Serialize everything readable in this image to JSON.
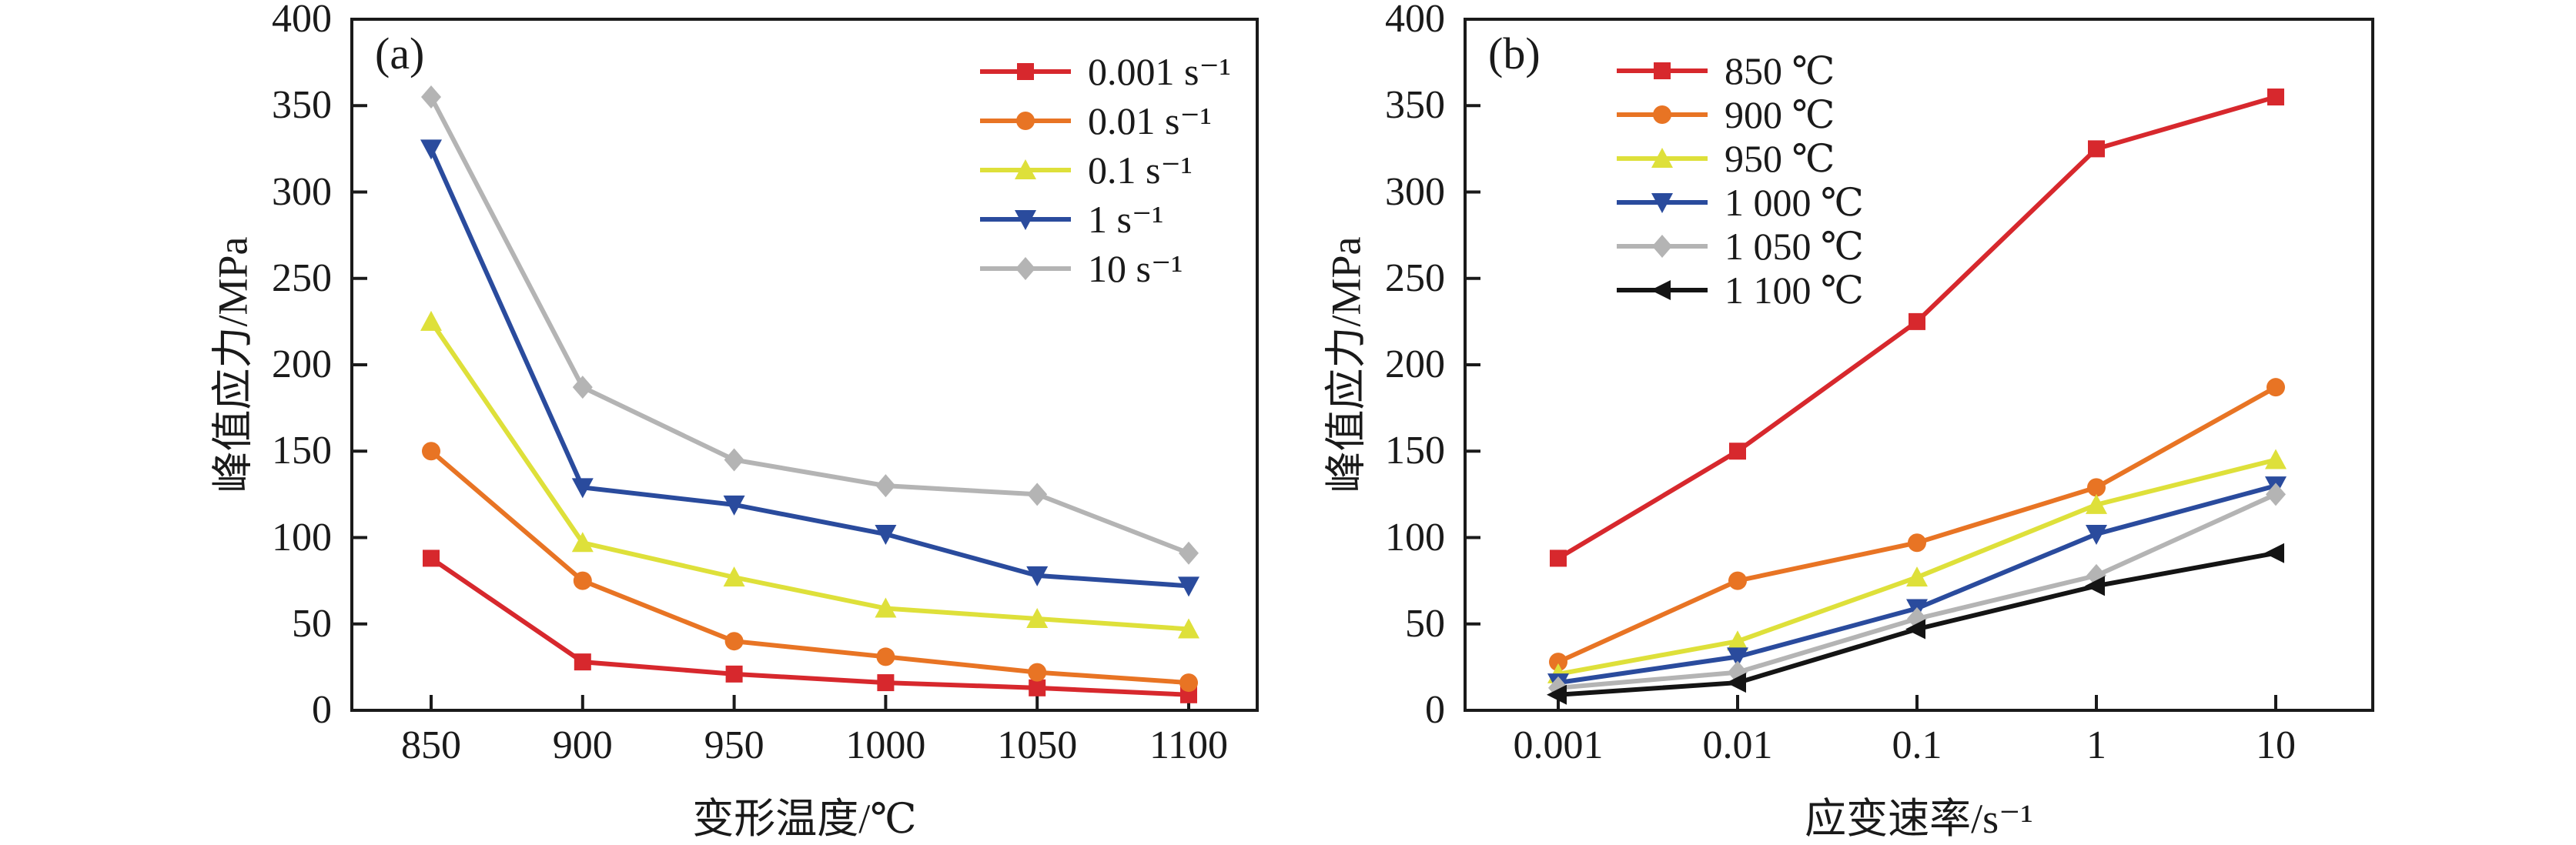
{
  "page": {
    "background": "#ffffff",
    "axis_color": "#1a1a1a"
  },
  "chart_data": [
    {
      "id": "a",
      "type": "line",
      "panel_label": "(a)",
      "title": "",
      "xlabel": "变形温度/℃",
      "ylabel": "峰值应力/MPa",
      "x_scale": "linear",
      "categories": [
        850,
        900,
        950,
        1000,
        1050,
        1100
      ],
      "x_tick_labels": [
        "850",
        "900",
        "950",
        "1000",
        "1050",
        "1100"
      ],
      "y_ticks": [
        0,
        50,
        100,
        150,
        200,
        250,
        300,
        350,
        400
      ],
      "y_tick_labels": [
        "0",
        "50",
        "100",
        "150",
        "200",
        "250",
        "300",
        "350",
        "400"
      ],
      "ylim": [
        0,
        400
      ],
      "grid": false,
      "legend_position": "top-right",
      "series": [
        {
          "name": "0.001 s⁻¹",
          "marker": "square",
          "color": "#d7282d",
          "values": [
            88,
            28,
            21,
            16,
            13,
            9
          ]
        },
        {
          "name": "0.01 s⁻¹",
          "marker": "circle",
          "color": "#e87424",
          "values": [
            150,
            75,
            40,
            31,
            22,
            16
          ]
        },
        {
          "name": "0.1 s⁻¹",
          "marker": "triangle-up",
          "color": "#dee03a",
          "values": [
            225,
            97,
            77,
            59,
            53,
            47
          ]
        },
        {
          "name": "1 s⁻¹",
          "marker": "triangle-down",
          "color": "#2a4b9d",
          "values": [
            325,
            129,
            119,
            102,
            78,
            72
          ]
        },
        {
          "name": "10 s⁻¹",
          "marker": "diamond",
          "color": "#b4b4b4",
          "values": [
            355,
            187,
            145,
            130,
            125,
            91
          ]
        }
      ]
    },
    {
      "id": "b",
      "type": "line",
      "panel_label": "(b)",
      "title": "",
      "xlabel": "应变速率/s⁻¹",
      "ylabel": "峰值应力/MPa",
      "x_scale": "log",
      "categories": [
        0.001,
        0.01,
        0.1,
        1,
        10
      ],
      "x_tick_labels": [
        "0.001",
        "0.01",
        "0.1",
        "1",
        "10"
      ],
      "y_ticks": [
        0,
        50,
        100,
        150,
        200,
        250,
        300,
        350,
        400
      ],
      "y_tick_labels": [
        "0",
        "50",
        "100",
        "150",
        "200",
        "250",
        "300",
        "350",
        "400"
      ],
      "ylim": [
        0,
        400
      ],
      "grid": false,
      "legend_position": "top-left",
      "series": [
        {
          "name": "850 ℃",
          "marker": "square",
          "color": "#d7282d",
          "values": [
            88,
            150,
            225,
            325,
            355
          ]
        },
        {
          "name": "900 ℃",
          "marker": "circle",
          "color": "#e87424",
          "values": [
            28,
            75,
            97,
            129,
            187
          ]
        },
        {
          "name": "950 ℃",
          "marker": "triangle-up",
          "color": "#dee03a",
          "values": [
            21,
            40,
            77,
            119,
            145
          ]
        },
        {
          "name": "1 000 ℃",
          "marker": "triangle-down",
          "color": "#2a4b9d",
          "values": [
            16,
            31,
            59,
            102,
            130
          ]
        },
        {
          "name": "1 050 ℃",
          "marker": "diamond",
          "color": "#b4b4b4",
          "values": [
            13,
            22,
            53,
            78,
            125
          ]
        },
        {
          "name": "1 100 ℃",
          "marker": "triangle-left",
          "color": "#141414",
          "values": [
            9,
            16,
            47,
            72,
            91
          ]
        }
      ]
    }
  ]
}
